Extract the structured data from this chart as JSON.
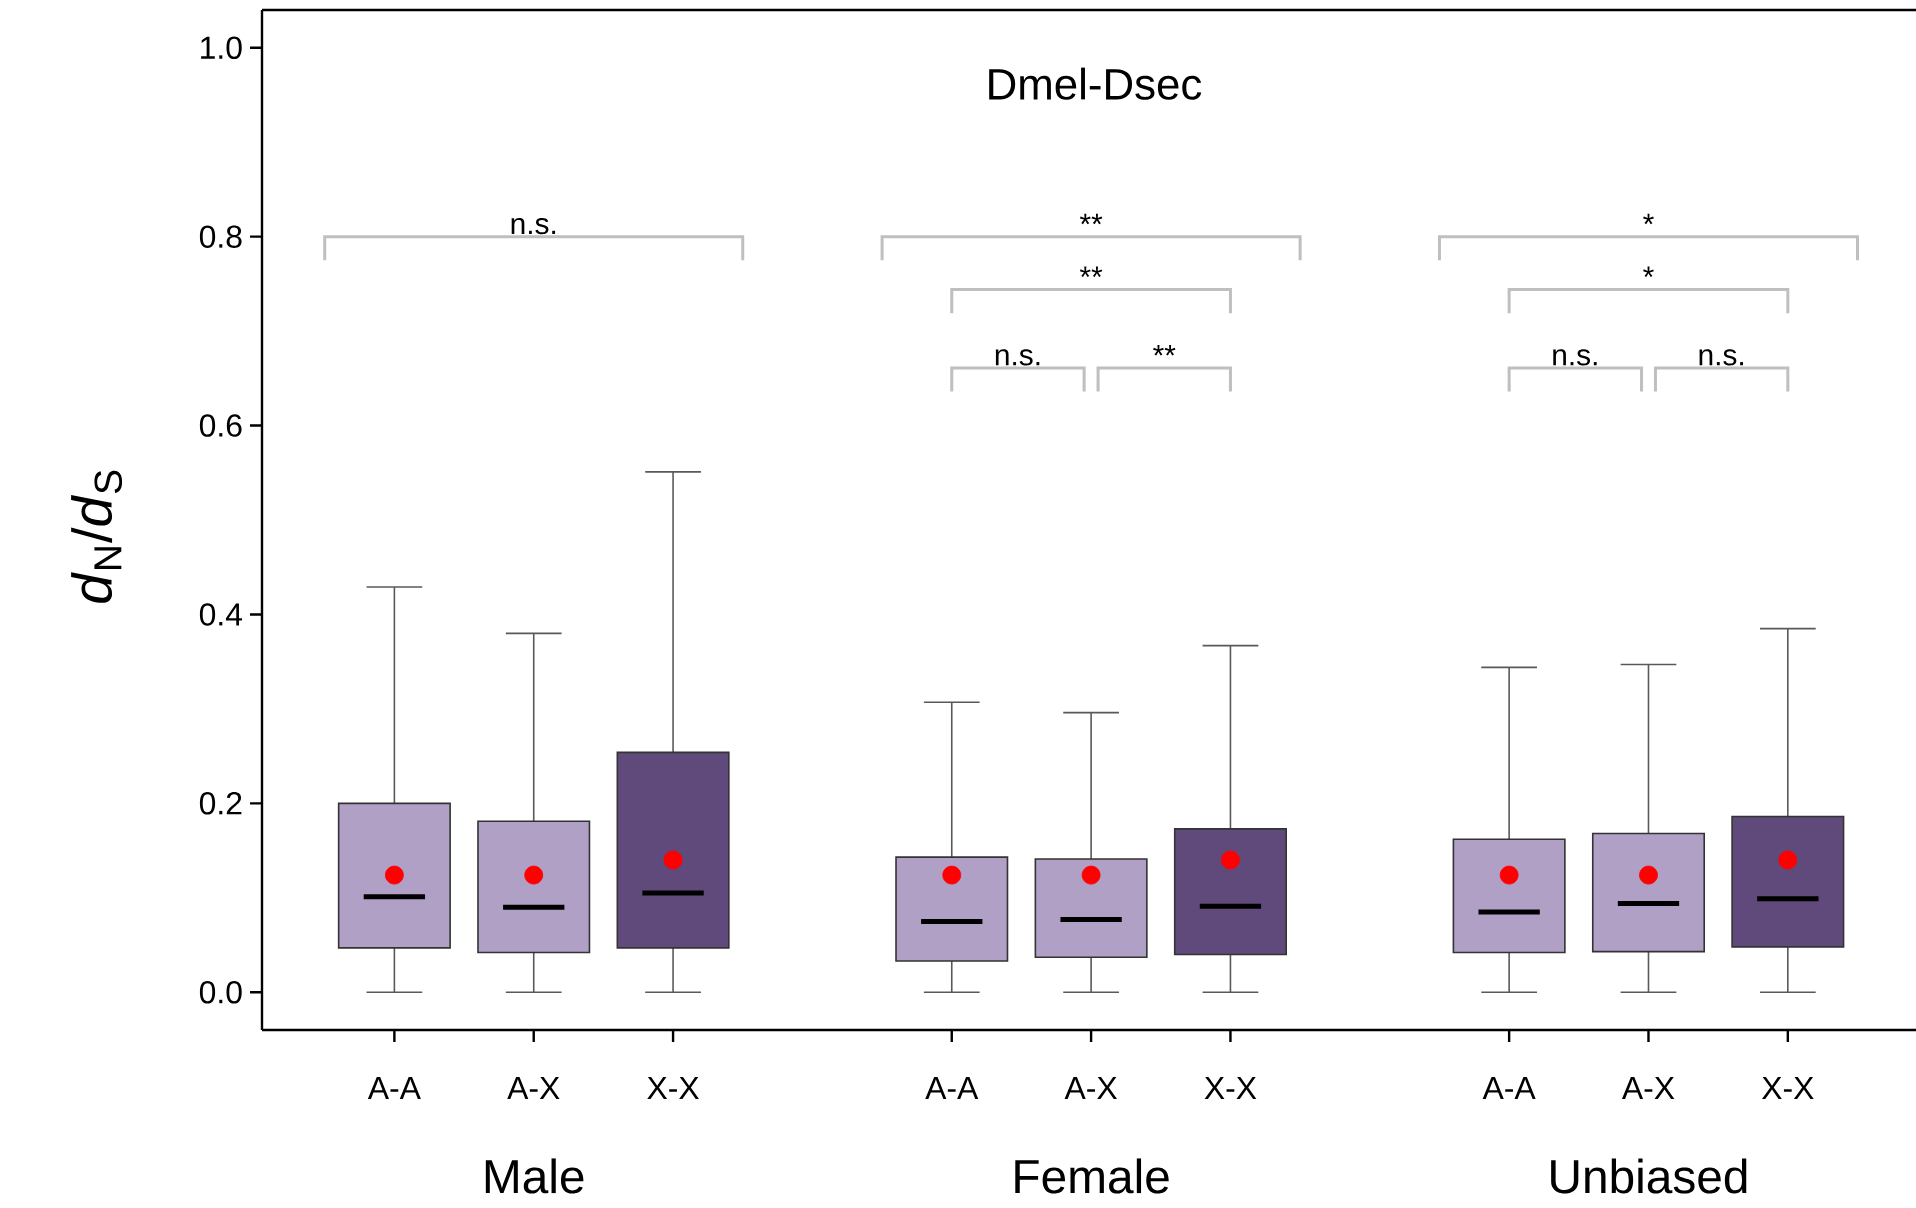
{
  "chart_data": {
    "type": "box",
    "title": "Dmel-Dsec",
    "ylabel": "*d*$_{N}$/*d*$_{S}$",
    "categories": [
      "A-A",
      "A-X",
      "X-X",
      null,
      "A-A",
      "A-X",
      "X-X",
      null,
      "A-A",
      "A-X",
      "X-X"
    ],
    "colors": [
      "#b0a0c6",
      "#b0a0c6",
      "#5f4a7b",
      null,
      "#b0a0c6",
      "#b0a0c6",
      "#5f4a7b",
      null,
      "#b0a0c6",
      "#b0a0c6",
      "#5f4a7b"
    ],
    "boxes": [
      {
        "low": 0,
        "q1": 0.047,
        "median": 0.101,
        "q3": 0.2,
        "high": 0.429,
        "mean": 0.124
      },
      {
        "low": 0,
        "q1": 0.042,
        "median": 0.09,
        "q3": 0.181,
        "high": 0.38,
        "mean": 0.124
      },
      {
        "low": 0,
        "q1": 0.047,
        "median": 0.105,
        "q3": 0.254,
        "high": 0.551,
        "mean": 0.14
      },
      null,
      {
        "low": 0,
        "q1": 0.033,
        "median": 0.075,
        "q3": 0.143,
        "high": 0.307,
        "mean": 0.124
      },
      {
        "low": 0,
        "q1": 0.037,
        "median": 0.077,
        "q3": 0.141,
        "high": 0.296,
        "mean": 0.124
      },
      {
        "low": 0,
        "q1": 0.04,
        "median": 0.091,
        "q3": 0.173,
        "high": 0.367,
        "mean": 0.14
      },
      null,
      {
        "low": 0,
        "q1": 0.042,
        "median": 0.085,
        "q3": 0.162,
        "high": 0.344,
        "mean": 0.124
      },
      {
        "low": 0,
        "q1": 0.043,
        "median": 0.094,
        "q3": 0.168,
        "high": 0.347,
        "mean": 0.124
      },
      {
        "low": 0,
        "q1": 0.048,
        "median": 0.099,
        "q3": 0.186,
        "high": 0.385,
        "mean": 0.14
      }
    ],
    "ylim": [
      -0.04,
      1.04
    ],
    "yticks": [
      {
        "value": 0,
        "label": "0.0"
      },
      {
        "value": 0.2,
        "label": "0.2"
      },
      {
        "value": 0.4,
        "label": "0.4"
      },
      {
        "value": 0.6,
        "label": "0.6"
      },
      {
        "value": 0.8,
        "label": "0.8"
      },
      {
        "value": 1.0,
        "label": "1.0"
      }
    ],
    "grid": false,
    "annotations": [
      "Male",
      "Female",
      "Unbiased",
      "n.s.",
      "**",
      "**",
      "n.s.",
      "**",
      "*",
      "*",
      "n.s.",
      "n.s."
    ]
  }
}
